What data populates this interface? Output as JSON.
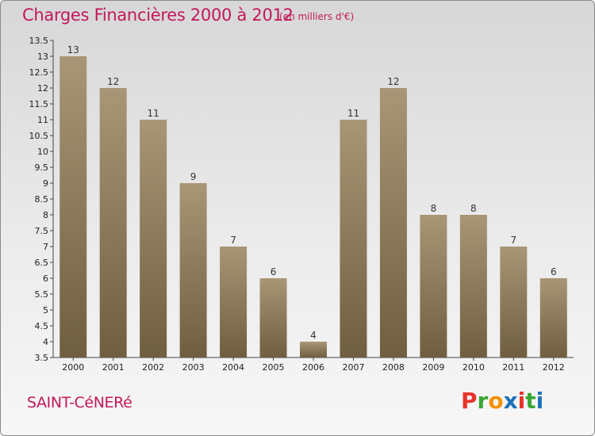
{
  "header": {
    "title": "Charges Financières 2000 à 2012",
    "subtitle": "(en milliers d'€)"
  },
  "footer": {
    "commune": "SAINT-CéNERé",
    "logo_letters": [
      {
        "ch": "P",
        "color": "#e8332a"
      },
      {
        "ch": "r",
        "color": "#3aa535"
      },
      {
        "ch": "o",
        "color": "#f39200"
      },
      {
        "ch": "x",
        "color": "#1d71b8"
      },
      {
        "ch": "i",
        "color": "#e8332a"
      },
      {
        "ch": "t",
        "color": "#3aa535"
      },
      {
        "ch": "i",
        "color": "#1d71b8"
      }
    ]
  },
  "colors": {
    "accent": "#c2185b",
    "bar_light": "#a89676",
    "bar_dark": "#6f5e40"
  },
  "chart_data": {
    "type": "bar",
    "title": "Charges Financières 2000 à 2012",
    "subtitle": "(en milliers d'€)",
    "categories": [
      "2000",
      "2001",
      "2002",
      "2003",
      "2004",
      "2005",
      "2006",
      "2007",
      "2008",
      "2009",
      "2010",
      "2011",
      "2012"
    ],
    "values": [
      13,
      12,
      11,
      9,
      7,
      6,
      4,
      11,
      12,
      8,
      8,
      7,
      6
    ],
    "ylim": [
      3.5,
      13.5
    ],
    "yticks": [
      "3.5",
      "4",
      "4.5",
      "5",
      "5.5",
      "6",
      "6.5",
      "7",
      "7.5",
      "8",
      "8.5",
      "9",
      "9.5",
      "10",
      "10.5",
      "11",
      "11.5",
      "12",
      "12.5",
      "13",
      "13.5"
    ],
    "grid": false
  }
}
